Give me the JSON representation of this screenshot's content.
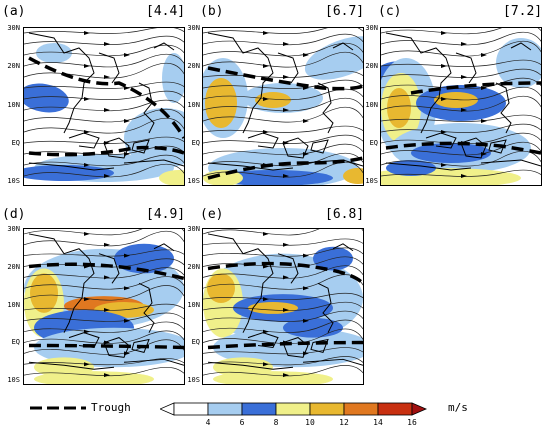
{
  "panels": [
    {
      "label": "(a)",
      "value": "[4.4]"
    },
    {
      "label": "(b)",
      "value": "[6.7]"
    },
    {
      "label": "(c)",
      "value": "[7.2]"
    },
    {
      "label": "(d)",
      "value": "[4.9]"
    },
    {
      "label": "(e)",
      "value": "[6.8]"
    }
  ],
  "lat_labels": [
    "30N",
    "20N",
    "10N",
    "EQ",
    "10S"
  ],
  "legend": {
    "trough_label": "Trough",
    "units": "m/s",
    "ticks": [
      "4",
      "6",
      "8",
      "10",
      "12",
      "14",
      "16"
    ],
    "colors": [
      "#a6cdf0",
      "#3a6fd8",
      "#f0f08a",
      "#e8b830",
      "#e07820",
      "#c83010",
      "#a01010"
    ]
  }
}
